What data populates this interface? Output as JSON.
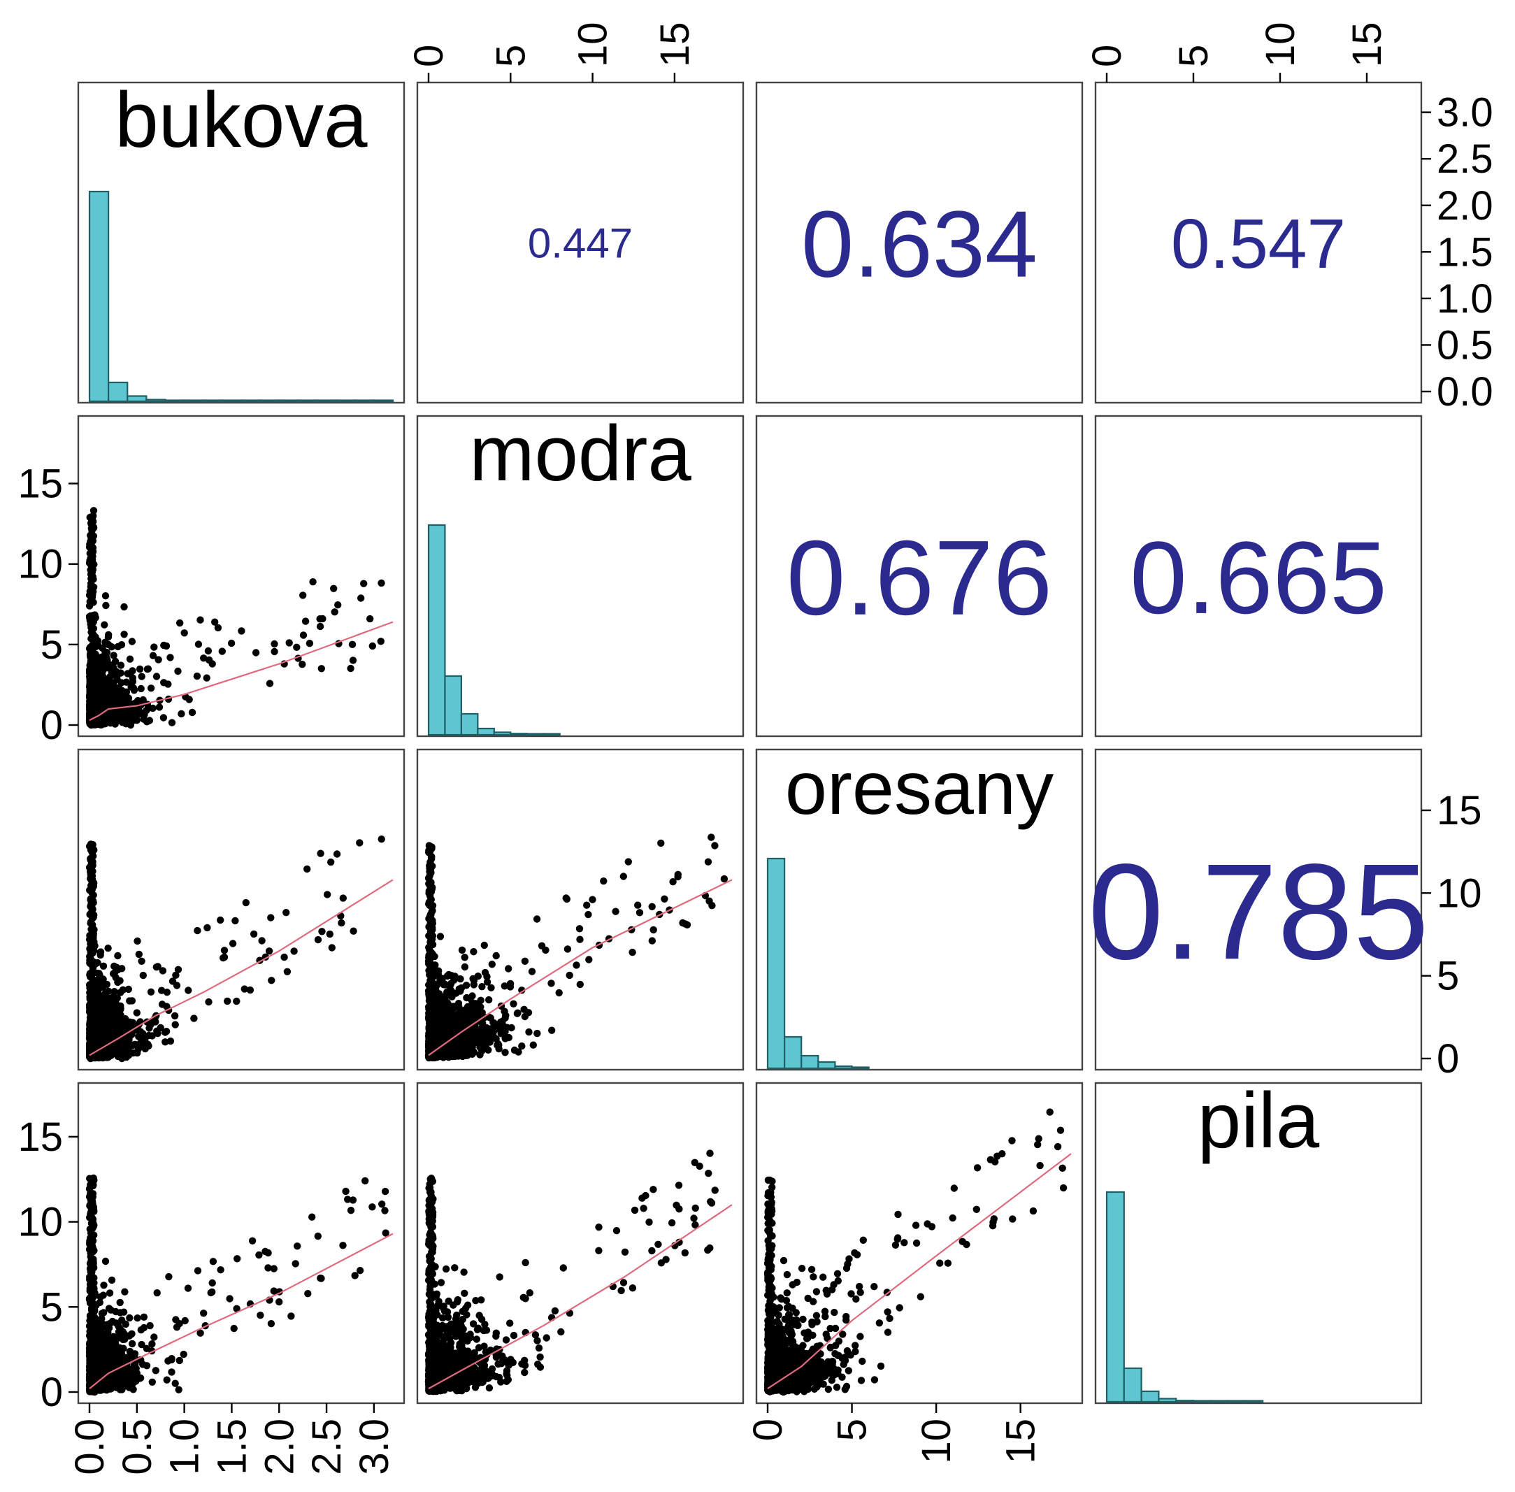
{
  "chart_data": {
    "type": "scatter-matrix",
    "title": "",
    "variables": [
      "bukova",
      "modra",
      "oresany",
      "pila"
    ],
    "ranges": {
      "bukova": [
        0,
        3.2
      ],
      "modra": [
        0,
        18.5
      ],
      "oresany": [
        0,
        18
      ],
      "pila": [
        0,
        17.5
      ]
    },
    "ticks": {
      "bukova": [
        "0.0",
        "0.5",
        "1.0",
        "1.5",
        "2.0",
        "2.5",
        "3.0"
      ],
      "modra": [
        "0",
        "5",
        "10",
        "15"
      ],
      "oresany": [
        "0",
        "5",
        "10",
        "15"
      ],
      "pila": [
        "0",
        "5",
        "10",
        "15"
      ]
    },
    "correlations": [
      {
        "row": "bukova",
        "col": "modra",
        "label": "0.447",
        "value": 0.447
      },
      {
        "row": "bukova",
        "col": "oresany",
        "label": "0.634",
        "value": 0.634
      },
      {
        "row": "bukova",
        "col": "pila",
        "label": "0.547",
        "value": 0.547
      },
      {
        "row": "modra",
        "col": "oresany",
        "label": "0.676",
        "value": 0.676
      },
      {
        "row": "modra",
        "col": "pila",
        "label": "0.665",
        "value": 0.665
      },
      {
        "row": "oresany",
        "col": "pila",
        "label": "0.785",
        "value": 0.785
      }
    ],
    "histograms": {
      "bukova": {
        "bin_width": 0.2,
        "values": [
          1.0,
          0.09,
          0.025,
          0.008,
          0.003,
          0.002,
          0.002,
          0.002,
          0.002,
          0.002,
          0.001,
          0.002,
          0.002,
          0.002,
          0.002,
          0.002
        ]
      },
      "modra": {
        "bin_width": 1.0,
        "values": [
          1.0,
          0.28,
          0.1,
          0.03,
          0.012,
          0.006,
          0.003,
          0.002
        ]
      },
      "oresany": {
        "bin_width": 1.0,
        "values": [
          1.0,
          0.15,
          0.06,
          0.03,
          0.01,
          0.004
        ]
      },
      "pila": {
        "bin_width": 1.0,
        "values": [
          1.0,
          0.16,
          0.05,
          0.015,
          0.006,
          0.003,
          0.002,
          0.002,
          0.002
        ]
      }
    },
    "smoothers": {
      "modra_vs_bukova": [
        [
          0.0,
          0.3
        ],
        [
          0.1,
          0.6
        ],
        [
          0.2,
          1.0
        ],
        [
          0.5,
          1.2
        ],
        [
          1.0,
          1.9
        ],
        [
          2.0,
          3.8
        ],
        [
          3.2,
          6.4
        ]
      ],
      "oresany_vs_bukova": [
        [
          0.0,
          0.2
        ],
        [
          0.3,
          1.2
        ],
        [
          0.7,
          2.6
        ],
        [
          1.2,
          4.0
        ],
        [
          2.0,
          6.5
        ],
        [
          3.2,
          10.8
        ]
      ],
      "oresany_vs_modra": [
        [
          0.0,
          0.2
        ],
        [
          2.0,
          1.6
        ],
        [
          5.0,
          3.6
        ],
        [
          10.0,
          6.7
        ],
        [
          18.5,
          10.8
        ]
      ],
      "pila_vs_bukova": [
        [
          0.0,
          0.2
        ],
        [
          0.2,
          1.1
        ],
        [
          0.6,
          2.2
        ],
        [
          1.2,
          3.8
        ],
        [
          2.0,
          5.8
        ],
        [
          3.2,
          9.3
        ]
      ],
      "pila_vs_modra": [
        [
          0.0,
          0.2
        ],
        [
          3.0,
          1.8
        ],
        [
          7.0,
          3.9
        ],
        [
          12.0,
          6.8
        ],
        [
          18.5,
          11.0
        ]
      ],
      "pila_vs_oresany": [
        [
          0.0,
          0.2
        ],
        [
          2.0,
          1.5
        ],
        [
          5.0,
          4.2
        ],
        [
          10.0,
          8.0
        ],
        [
          18.0,
          14.0
        ]
      ]
    }
  }
}
